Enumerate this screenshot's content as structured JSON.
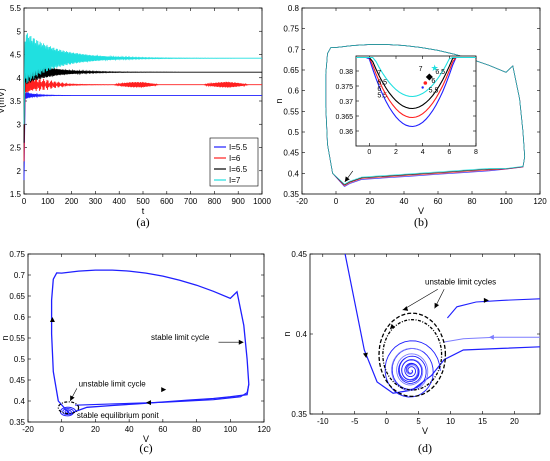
{
  "chart_data": [
    {
      "id": "a",
      "type": "line",
      "caption": "(a)",
      "xlabel": "t",
      "ylabel": "V(mV)",
      "xlim": [
        0,
        1000
      ],
      "ylim": [
        1.5,
        5.5
      ],
      "xticks": [
        0,
        100,
        200,
        300,
        400,
        500,
        600,
        700,
        800,
        900,
        1000
      ],
      "yticks": [
        1.5,
        2,
        2.5,
        3,
        3.5,
        4,
        4.5,
        5,
        5.5
      ],
      "legend_position": "bottom-right",
      "series": [
        {
          "name": "I=5.5",
          "color": "#1f1fff",
          "steady": 3.62,
          "start": 1.8,
          "peak": 3.7
        },
        {
          "name": "I=6",
          "color": "#ff2020",
          "steady": 3.85,
          "start": 2.2,
          "peak": 4.05
        },
        {
          "name": "I=6.5",
          "color": "#000000",
          "steady": 4.12,
          "start": 2.6,
          "peak": 4.4
        },
        {
          "name": "I=7",
          "color": "#20e0e0",
          "steady": 4.42,
          "start": 3.0,
          "peak": 5.0
        }
      ]
    },
    {
      "id": "b",
      "type": "line",
      "caption": "(b)",
      "xlabel": "V",
      "ylabel": "n",
      "xlim": [
        -20,
        120
      ],
      "ylim": [
        0.35,
        0.8
      ],
      "xticks": [
        -20,
        0,
        20,
        40,
        60,
        80,
        100,
        120
      ],
      "yticks": [
        0.35,
        0.4,
        0.45,
        0.5,
        0.55,
        0.6,
        0.65,
        0.7,
        0.75,
        0.8
      ],
      "inset": {
        "xlim": [
          -1,
          8
        ],
        "ylim": [
          0.355,
          0.385
        ],
        "xticks": [
          0,
          2,
          4,
          6,
          8
        ],
        "yticks": [
          0.36,
          0.365,
          0.37,
          0.375,
          0.38
        ],
        "curves": [
          {
            "label": "5.5",
            "color": "#1f1fff",
            "bottom": 0.3615
          },
          {
            "label": "6",
            "color": "#ff2020",
            "bottom": 0.3645
          },
          {
            "label": "6.5",
            "color": "#000000",
            "bottom": 0.3675
          },
          {
            "label": "7",
            "color": "#20e0e0",
            "bottom": 0.3715
          }
        ],
        "points": [
          {
            "label": "5.5",
            "x": 4.0,
            "y": 0.3745,
            "color": "#1f1fff"
          },
          {
            "label": "6",
            "x": 4.2,
            "y": 0.376,
            "color": "#ff2020"
          },
          {
            "label": "6.5",
            "x": 4.5,
            "y": 0.378,
            "color": "#000000"
          },
          {
            "label": "7",
            "x": 4.9,
            "y": 0.381,
            "color": "#20e0e0"
          }
        ]
      }
    },
    {
      "id": "c",
      "type": "line",
      "caption": "(c)",
      "xlabel": "V",
      "ylabel": "n",
      "xlim": [
        -20,
        120
      ],
      "ylim": [
        0.35,
        0.75
      ],
      "xticks": [
        -20,
        0,
        20,
        40,
        60,
        80,
        100,
        120
      ],
      "yticks": [
        0.35,
        0.4,
        0.45,
        0.5,
        0.55,
        0.6,
        0.65,
        0.7,
        0.75
      ],
      "annotations": [
        "stable limit cycle",
        "unstable limit cycle",
        "stable equilibrium ponit"
      ]
    },
    {
      "id": "d",
      "type": "line",
      "caption": "(d)",
      "xlabel": "V",
      "ylabel": "n",
      "xlim": [
        -12,
        24
      ],
      "ylim": [
        0.35,
        0.45
      ],
      "xticks": [
        -10,
        -5,
        0,
        5,
        10,
        15,
        20
      ],
      "yticks": [
        0.35,
        0.4,
        0.45
      ],
      "annotations": [
        "unstable limit cycles"
      ]
    }
  ]
}
